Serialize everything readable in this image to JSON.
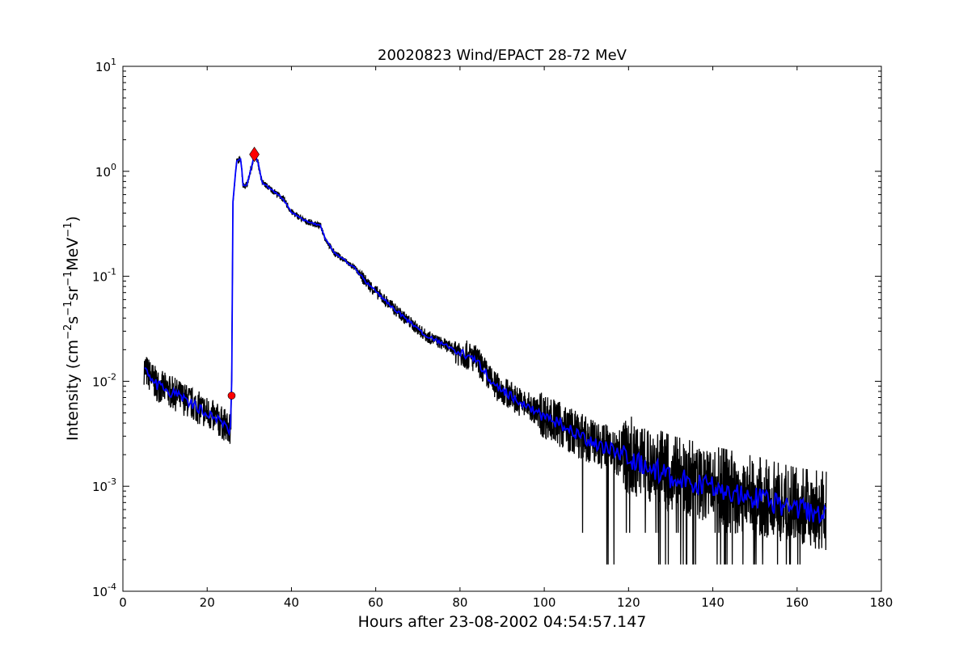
{
  "chart_data": {
    "type": "line",
    "title": "20020823 Wind/EPACT 28-72 MeV",
    "xlabel": "Hours after 23-08-2002 04:54:57.147",
    "ylabel": "Intensity (cm-2 s-1 sr-1 MeV-1)",
    "ylabel_parts": {
      "prefix": "Intensity (cm",
      "e1": "−2",
      "s": "s",
      "e2": "−1",
      "sr": "sr",
      "e3": "−1",
      "mev": "MeV",
      "e4": "−1",
      "suffix": ")"
    },
    "xlim": [
      0,
      180
    ],
    "ylim": [
      0.0001,
      10
    ],
    "yscale": "log",
    "xticks": [
      0,
      20,
      40,
      60,
      80,
      100,
      120,
      140,
      160,
      180
    ],
    "yticks": [
      {
        "base": "10",
        "exp": "-4",
        "value": 0.0001
      },
      {
        "base": "10",
        "exp": "-3",
        "value": 0.001
      },
      {
        "base": "10",
        "exp": "-2",
        "value": 0.01
      },
      {
        "base": "10",
        "exp": "-1",
        "value": 0.1
      },
      {
        "base": "10",
        "exp": "0",
        "value": 1
      },
      {
        "base": "10",
        "exp": "1",
        "value": 10
      }
    ],
    "grid": false,
    "series": [
      {
        "name": "raw intensity",
        "color": "#000000",
        "note": "noisy raw data following smoothed curve, floor ~1.8e-4"
      },
      {
        "name": "smoothed intensity",
        "color": "#0000ff",
        "x": [
          5,
          8,
          15,
          20,
          24,
          25.5,
          25.8,
          26.1,
          27,
          28,
          28.5,
          29.5,
          31.2,
          32,
          33,
          35,
          38,
          40,
          43,
          47,
          48,
          50,
          55,
          58,
          62,
          66,
          72,
          80,
          84,
          88,
          95,
          100,
          110,
          120,
          130,
          140,
          150,
          160,
          167
        ],
        "y": [
          0.0134,
          0.0093,
          0.0066,
          0.005,
          0.0039,
          0.0033,
          0.0073,
          0.51,
          1.24,
          1.32,
          0.73,
          0.75,
          1.43,
          1.25,
          0.79,
          0.68,
          0.55,
          0.41,
          0.34,
          0.3,
          0.23,
          0.17,
          0.12,
          0.086,
          0.06,
          0.043,
          0.027,
          0.019,
          0.016,
          0.0093,
          0.0061,
          0.0047,
          0.0028,
          0.0019,
          0.00122,
          0.00097,
          0.00077,
          0.0006,
          0.00055
        ]
      }
    ],
    "markers": [
      {
        "name": "onset",
        "x": 25.8,
        "y": 0.0073,
        "shape": "circle",
        "color": "#ff0000"
      },
      {
        "name": "peak",
        "x": 31.2,
        "y": 1.45,
        "shape": "diamond",
        "color": "#ff0000"
      }
    ],
    "noise_floor": 0.00018
  }
}
